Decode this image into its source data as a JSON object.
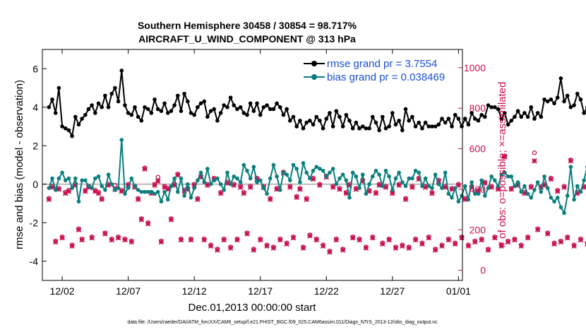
{
  "chart_data": {
    "type": "line",
    "title": "Southern Hemisphere 30458 / 30854 = 98.717%",
    "subtitle": "AIRCRAFT_U_WIND_COMPONENT @ 313 hPa",
    "xlabel": "Dec.01,2013 00:00:00 start",
    "ylabel": "rmse and bias (model - observation)",
    "ylabel_right": "# of obs: o=possible; ×=assimilated",
    "ylim": [
      -5,
      7
    ],
    "ylim_right": [
      -50,
      1090
    ],
    "xlim": [
      0.5,
      32.3
    ],
    "x_ticks": [
      2,
      7,
      12,
      17,
      22,
      27,
      32
    ],
    "x_tick_labels": [
      "12/02",
      "12/07",
      "12/12",
      "12/17",
      "12/22",
      "12/27",
      "01/01"
    ],
    "y_ticks": [
      -4,
      -2,
      0,
      2,
      4,
      6
    ],
    "y_tick_labels": [
      "-4",
      "-2",
      "0",
      "2",
      "4",
      "6"
    ],
    "y_ticks_right": [
      0,
      200,
      400,
      600,
      800,
      1000
    ],
    "y_tick_labels_right": [
      "0",
      "200",
      "400",
      "600",
      "800",
      "1000"
    ],
    "x_step_days": 0.25,
    "x_start": 1,
    "zero_line": 0,
    "legend_position": "top-right",
    "colors": {
      "rmse": "#000000",
      "bias": "#0b7f7f",
      "nobs": "#c8104f",
      "zero_line": "#bbbbbb",
      "legend_text": "#1a4fd6"
    },
    "series": [
      {
        "name": "rmse grand pr = 3.7554",
        "values": [
          4.0,
          4.4,
          3.7,
          5.0,
          3.0,
          2.9,
          2.8,
          2.5,
          3.5,
          3.1,
          3.4,
          3.6,
          3.9,
          4.1,
          3.7,
          4.2,
          4.0,
          4.6,
          4.0,
          4.7,
          5.0,
          4.3,
          5.9,
          4.1,
          3.7,
          3.6,
          4.0,
          3.5,
          3.3,
          4.0,
          3.9,
          3.7,
          4.4,
          3.9,
          3.8,
          4.2,
          3.7,
          3.8,
          4.1,
          4.6,
          3.8,
          4.7,
          4.3,
          3.7,
          3.6,
          4.0,
          4.2,
          4.3,
          3.5,
          3.8,
          3.9,
          3.3,
          3.7,
          4.1,
          4.0,
          4.5,
          4.1,
          3.9,
          4.0,
          3.7,
          3.6,
          4.2,
          3.8,
          4.2,
          3.6,
          4.0,
          4.1,
          3.9,
          3.9,
          4.2,
          4.0,
          3.6,
          3.9,
          3.3,
          3.5,
          3.0,
          3.3,
          2.9,
          3.2,
          3.3,
          3.1,
          3.5,
          3.3,
          2.9,
          3.4,
          3.7,
          3.0,
          3.8,
          3.5,
          3.0,
          3.6,
          3.3,
          2.9,
          3.2,
          2.9,
          3.0,
          2.9,
          2.9,
          3.5,
          3.2,
          2.8,
          3.5,
          2.9,
          3.0,
          3.7,
          3.1,
          3.3,
          2.8,
          3.9,
          3.3,
          3.5,
          3.0,
          3.2,
          2.9,
          3.2,
          3.0,
          3.0,
          3.0,
          3.1,
          3.4,
          3.2,
          3.4,
          3.0,
          3.6,
          3.4,
          3.0,
          3.4,
          3.1,
          3.7,
          3.4,
          3.3,
          3.6,
          3.5,
          4.1,
          4.0,
          4.0,
          3.9,
          3.4,
          3.7,
          3.1,
          3.3,
          3.5,
          3.8,
          3.5,
          3.7,
          3.5,
          4.0,
          3.4,
          3.7,
          3.5,
          4.4,
          4.3,
          4.4,
          4.2,
          4.5,
          5.5,
          4.3,
          4.6,
          4.0,
          4.1,
          4.7,
          4.4,
          3.7,
          4.0,
          5.0,
          4.6,
          3.8,
          3.4,
          3.0,
          3.5,
          3.2,
          3.3,
          3.4,
          3.0,
          3.4,
          3.3,
          3.5,
          3.4,
          3.3,
          3.2,
          3.8,
          3.5,
          4.2,
          3.5,
          3.0,
          3.4,
          3.9,
          3.2,
          3.5,
          3.2,
          3.6,
          3.4,
          3.0,
          3.3,
          3.5,
          3.4,
          3.6,
          3.0,
          3.5,
          3.4,
          3.3,
          3.5,
          3.3,
          3.2,
          4.8,
          4.3,
          3.3,
          4.8,
          3.9,
          4.5,
          3.7
        ]
      },
      {
        "name": "bias grand pr = 0.038469",
        "values": [
          -0.2,
          0.3,
          -0.3,
          0.3,
          0.6,
          0.2,
          0.3,
          -0.2,
          0.3,
          -0.9,
          0.2,
          0.2,
          -0.1,
          -0.2,
          0.3,
          0.4,
          -0.1,
          -0.3,
          0.5,
          0.0,
          -0.3,
          -0.2,
          2.3,
          -0.5,
          -0.2,
          0.3,
          -0.1,
          -0.3,
          -0.4,
          -0.4,
          -0.4,
          -0.4,
          -0.5,
          -0.4,
          -0.9,
          -0.4,
          -0.8,
          -0.1,
          0.3,
          -0.4,
          0.3,
          -0.6,
          0.0,
          -0.7,
          -0.2,
          0.2,
          0.6,
          0.1,
          0.8,
          0.0,
          0.2,
          0.3,
          0.0,
          -0.3,
          0.6,
          0.0,
          0.4,
          0.3,
          0.1,
          1.0,
          0.7,
          0.3,
          0.9,
          0.1,
          0.2,
          -0.2,
          -0.5,
          0.3,
          1.0,
          0.4,
          -0.3,
          0.6,
          0.5,
          0.2,
          1.0,
          0.8,
          0.1,
          1.1,
          0.6,
          0.3,
          0.7,
          0.9,
          0.8,
          0.7,
          0.4,
          0.6,
          0.8,
          0.0,
          0.3,
          0.5,
          0.2,
          -0.7,
          0.6,
          0.4,
          -0.2,
          0.5,
          -0.5,
          0.0,
          0.4,
          0.7,
          0.5,
          -0.1,
          0.7,
          0.4,
          -0.3,
          0.3,
          0.6,
          0.1,
          -0.1,
          0.3,
          0.3,
          0.7,
          0.6,
          -0.1,
          0.3,
          -0.1,
          -0.2,
          0.5,
          0.0,
          -0.2,
          0.6,
          -0.5,
          -0.7,
          -0.2,
          -0.9,
          -0.6,
          -0.1,
          -0.8,
          0.1,
          -0.5,
          -0.5,
          0.2,
          -0.6,
          -0.2,
          0.4,
          0.2,
          -0.1,
          0.5,
          0.6,
          0.4,
          0.4,
          -0.1,
          0.1,
          -0.4,
          -0.1,
          -0.5,
          -0.7,
          -0.3,
          0.1,
          -0.4,
          0.4,
          -0.2,
          -0.7,
          -0.9,
          -0.7,
          -1.2,
          -1.5,
          -0.6,
          0.9,
          -0.8,
          -0.1,
          -0.4,
          0.2,
          0.9,
          0.6,
          -0.3,
          0.2,
          0.6,
          0.5,
          -0.1,
          0.2,
          1.0,
          0.7,
          0.1,
          0.4,
          0.6,
          -0.7,
          0.0,
          1.0,
          0.1,
          0.7,
          0.2,
          0.1,
          0.5,
          0.6,
          0.6,
          0.3,
          -0.3,
          0.1,
          0.5,
          0.7,
          0.5,
          0.0,
          0.1,
          0.6,
          0.9,
          0.6,
          0.3,
          0.4,
          0.2,
          0.4,
          0.4,
          0.4,
          0.0,
          0.6,
          0.5,
          0.8,
          0.3,
          0.9,
          1.2,
          0.6,
          1.1,
          1.6,
          0.7,
          0.7,
          0.9,
          0.9,
          1.0
        ]
      },
      {
        "name": "# of obs assimilated",
        "axis": "right",
        "marker": "x",
        "values": [
          350,
          410,
          140,
          400,
          160,
          380,
          390,
          120,
          420,
          200,
          150,
          390,
          410,
          160,
          390,
          380,
          350,
          180,
          420,
          150,
          400,
          160,
          390,
          150,
          420,
          140,
          410,
          350,
          250,
          500,
          230,
          380,
          420,
          440,
          140,
          410,
          400,
          250,
          420,
          470,
          150,
          390,
          400,
          150,
          420,
          350,
          460,
          150,
          420,
          120,
          450,
          100,
          380,
          150,
          430,
          110,
          420,
          150,
          410,
          380,
          180,
          410,
          100,
          450,
          150,
          410,
          120,
          350,
          110,
          400,
          150,
          480,
          130,
          410,
          160,
          360,
          400,
          110,
          350,
          170,
          450,
          150,
          420,
          120,
          460,
          90,
          410,
          150,
          400,
          100,
          380,
          420,
          160,
          400,
          150,
          440,
          110,
          390,
          160,
          380,
          420,
          130,
          410,
          150,
          380,
          110,
          420,
          120,
          350,
          110,
          410,
          150,
          450,
          130,
          410,
          160,
          380,
          100,
          440,
          120,
          410,
          150,
          400,
          130,
          420,
          160,
          350,
          120,
          410,
          140,
          390,
          150,
          430,
          100,
          410,
          160,
          400,
          120,
          560,
          140,
          400,
          150,
          420,
          120,
          380,
          160,
          410,
          540,
          200,
          410,
          420,
          180,
          450,
          130,
          390,
          140,
          410,
          160,
          540,
          120,
          380,
          150,
          410,
          130,
          400,
          430,
          120,
          500,
          110,
          400,
          150,
          460,
          130,
          390,
          110,
          410,
          360,
          120,
          400,
          150,
          380,
          140,
          420,
          130,
          350,
          150,
          410,
          120,
          400,
          160,
          360,
          140,
          420,
          130,
          230,
          140,
          420,
          180,
          300,
          100,
          400,
          0
        ]
      },
      {
        "name": "# of obs possible",
        "axis": "right",
        "marker": "o",
        "values": [
          355,
          415,
          145,
          405,
          165,
          385,
          395,
          125,
          425,
          205,
          155,
          395,
          415,
          165,
          395,
          385,
          355,
          185,
          425,
          155,
          420,
          165,
          395,
          155,
          425,
          145,
          415,
          355,
          255,
          505,
          235,
          385,
          425,
          460,
          145,
          415,
          405,
          255,
          425,
          475,
          155,
          395,
          405,
          155,
          425,
          355,
          465,
          155,
          425,
          125,
          455,
          105,
          385,
          155,
          435,
          115,
          425,
          155,
          415,
          385,
          185,
          415,
          105,
          455,
          155,
          415,
          125,
          355,
          115,
          405,
          155,
          485,
          135,
          415,
          165,
          365,
          405,
          115,
          355,
          175,
          455,
          155,
          425,
          125,
          465,
          95,
          415,
          155,
          405,
          105,
          385,
          425,
          165,
          405,
          155,
          445,
          115,
          395,
          165,
          385,
          425,
          135,
          415,
          155,
          385,
          115,
          425,
          125,
          355,
          115,
          415,
          155,
          455,
          135,
          415,
          165,
          385,
          105,
          445,
          125,
          415,
          155,
          405,
          135,
          425,
          165,
          355,
          125,
          415,
          145,
          395,
          155,
          435,
          105,
          415,
          165,
          405,
          125,
          565,
          145,
          405,
          155,
          425,
          125,
          385,
          165,
          415,
          580,
          205,
          415,
          425,
          185,
          455,
          135,
          395,
          145,
          415,
          165,
          545,
          125,
          385,
          155,
          415,
          135,
          405,
          435,
          125,
          505,
          115,
          405,
          155,
          465,
          135,
          395,
          115,
          415,
          365,
          125,
          405,
          155,
          385,
          145,
          425,
          135,
          355,
          155,
          415,
          125,
          405,
          165,
          365,
          145,
          425,
          135,
          235,
          145,
          425,
          185,
          305,
          105,
          405,
          5
        ]
      }
    ],
    "legend": [
      "rmse grand pr = 3.7554",
      "bias grand pr = 0.038469"
    ]
  },
  "footer": "data file: /Users/raeder/DAI/ATM_forcXX/CAM6_setup/f.e21.FHIST_BGC.f09_025.CAM6assim.011/Diags_NTrS_2013-12/obs_diag_output.nc"
}
